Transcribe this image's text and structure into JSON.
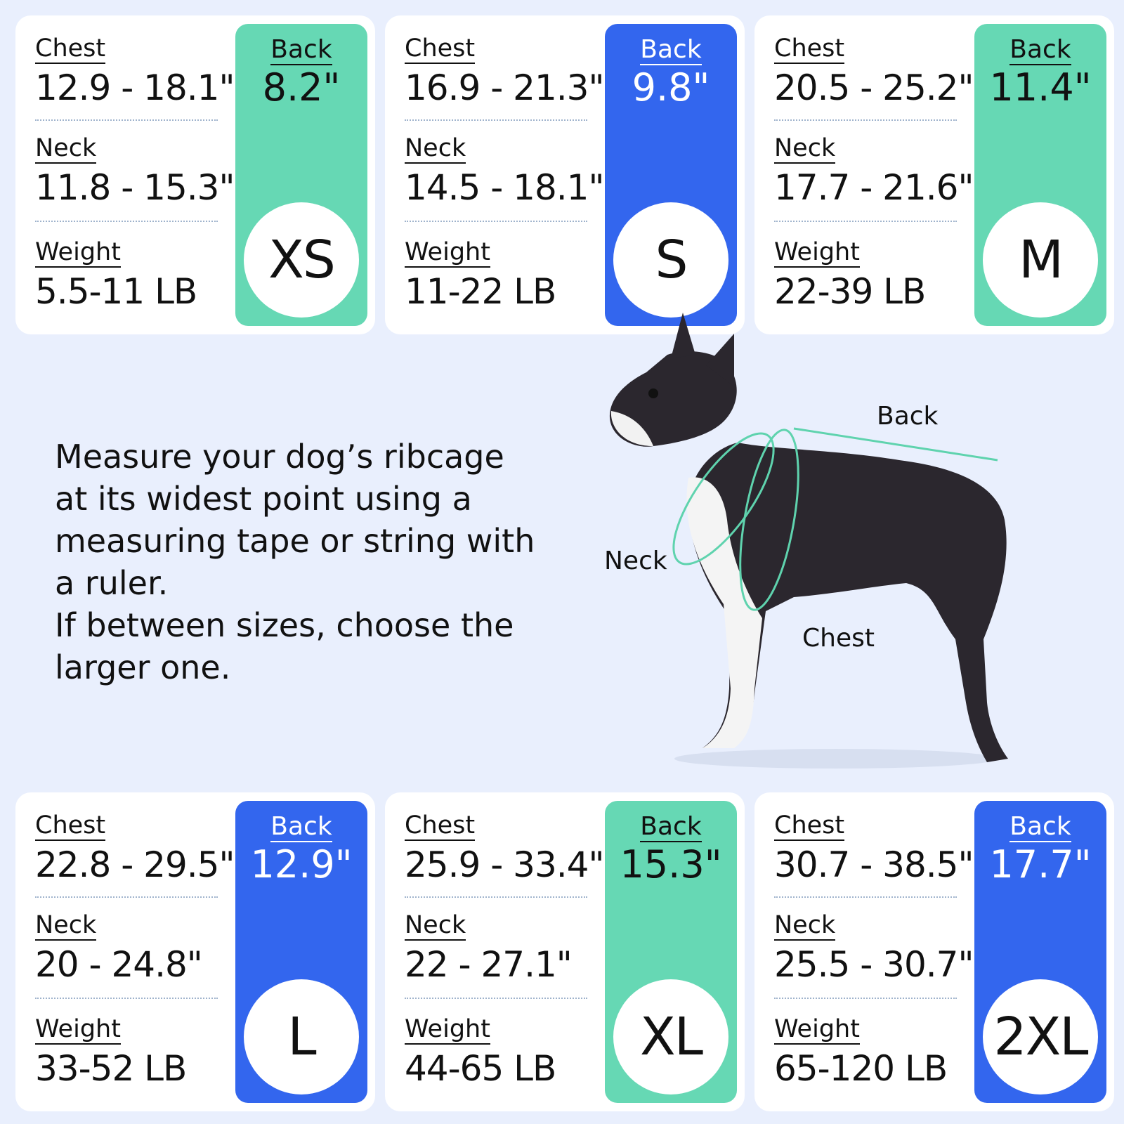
{
  "labels": {
    "chest": "Chest",
    "neck": "Neck",
    "weight": "Weight",
    "back": "Back"
  },
  "sizes": [
    {
      "size": "XS",
      "chest": "12.9 - 18.1\"",
      "neck": "11.8 - 15.3\"",
      "weight": "5.5-11 LB",
      "back": "8.2\"",
      "panel_color": "#66d8b4"
    },
    {
      "size": "S",
      "chest": "16.9 - 21.3\"",
      "neck": "14.5 - 18.1\"",
      "weight": "11-22 LB",
      "back": "9.8\"",
      "panel_color": "#3366ee"
    },
    {
      "size": "M",
      "chest": "20.5 - 25.2\"",
      "neck": "17.7 - 21.6\"",
      "weight": "22-39 LB",
      "back": "11.4\"",
      "panel_color": "#66d8b4"
    },
    {
      "size": "L",
      "chest": "22.8 - 29.5\"",
      "neck": "20 - 24.8\"",
      "weight": "33-52 LB",
      "back": "12.9\"",
      "panel_color": "#3366ee"
    },
    {
      "size": "XL",
      "chest": "25.9 - 33.4\"",
      "neck": "22 - 27.1\"",
      "weight": "44-65 LB",
      "back": "15.3\"",
      "panel_color": "#66d8b4"
    },
    {
      "size": "2XL",
      "chest": "30.7 - 38.5\"",
      "neck": "25.5 - 30.7\"",
      "weight": "65-120 LB",
      "back": "17.7\"",
      "panel_color": "#3366ee"
    }
  ],
  "instructions": {
    "line1": "Measure your dog’s ribcage at its widest point using a measuring tape or string with a ruler.",
    "line2": "If between sizes, choose the larger one."
  },
  "diagram": {
    "back_label": "Back",
    "neck_label": "Neck",
    "chest_label": "Chest"
  },
  "colors": {
    "background": "#e9effd",
    "green": "#66d8b4",
    "blue": "#3366ee",
    "measure_line": "#5fd3ae"
  }
}
